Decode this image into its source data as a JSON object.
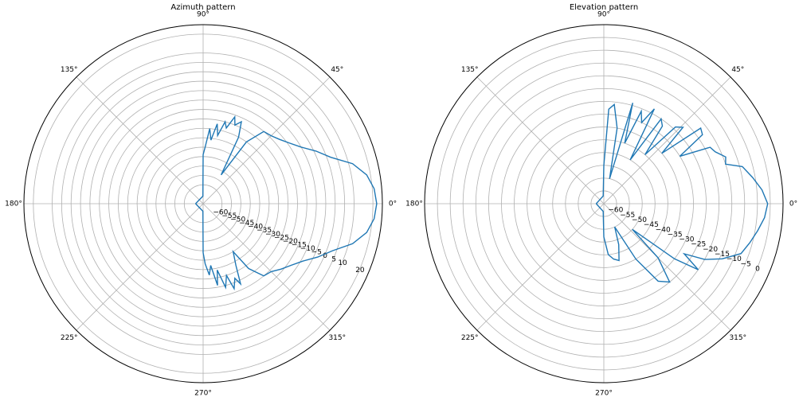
{
  "chart_data": [
    {
      "type": "polar",
      "title": "Azimuth pattern",
      "color": "#1f77b4",
      "grid": true,
      "rlim": [
        -70,
        25
      ],
      "rticks": [
        {
          "value": -60,
          "label": "−60"
        },
        {
          "value": -55,
          "label": "−55"
        },
        {
          "value": -50,
          "label": "−50"
        },
        {
          "value": -45,
          "label": "−45"
        },
        {
          "value": -40,
          "label": "−40"
        },
        {
          "value": -35,
          "label": "−35"
        },
        {
          "value": -30,
          "label": "−30"
        },
        {
          "value": -25,
          "label": "−25"
        },
        {
          "value": -20,
          "label": "−20"
        },
        {
          "value": -15,
          "label": "−15"
        },
        {
          "value": -10,
          "label": "−10"
        },
        {
          "value": -5,
          "label": "−5"
        },
        0,
        5,
        10,
        20
      ],
      "thetaticks": [
        {
          "value": 0,
          "label": "0°"
        },
        {
          "value": 45,
          "label": "45°"
        },
        {
          "value": 90,
          "label": "90°"
        },
        {
          "value": 135,
          "label": "135°"
        },
        {
          "value": 180,
          "label": "180°"
        },
        {
          "value": 225,
          "label": "225°"
        },
        {
          "value": 270,
          "label": "270°"
        },
        {
          "value": 315,
          "label": "315°"
        }
      ],
      "theta": [
        -180,
        -92,
        -90,
        -88,
        -85,
        -83,
        -80,
        -78,
        -75,
        -72,
        -70,
        -67,
        -65,
        -62,
        -58,
        -55,
        -50,
        -45,
        -40,
        -35,
        -30,
        -25,
        -20,
        -15,
        -10,
        -5,
        0,
        5,
        10,
        15,
        20,
        25,
        30,
        35,
        40,
        45,
        50,
        55,
        58,
        62,
        65,
        68,
        70,
        73,
        75,
        78,
        80,
        83,
        85,
        88,
        90,
        92,
        180
      ],
      "values": [
        -66,
        -66,
        -44,
        -38,
        -32,
        -37,
        -26,
        -34,
        -24,
        -30,
        -22,
        -27,
        -23,
        -33,
        -40,
        -28,
        -20,
        -19,
        -16,
        -13,
        -9,
        -3,
        3,
        12,
        18,
        21,
        22,
        21,
        18,
        12,
        2,
        -4,
        -10,
        -14,
        -17,
        -19,
        -20,
        -30,
        -52,
        -30,
        -22,
        -25,
        -21,
        -28,
        -25,
        -33,
        -27,
        -36,
        -30,
        -40,
        -44,
        -66,
        -66
      ]
    },
    {
      "type": "polar",
      "title": "Elevation pattern",
      "color": "#1f77b4",
      "grid": true,
      "rlim": [
        -65,
        5
      ],
      "rticks": [
        {
          "value": -60,
          "label": "−60"
        },
        {
          "value": -55,
          "label": "−55"
        },
        {
          "value": -50,
          "label": "−50"
        },
        {
          "value": -45,
          "label": "−45"
        },
        {
          "value": -40,
          "label": "−40"
        },
        {
          "value": -35,
          "label": "−35"
        },
        {
          "value": -30,
          "label": "−30"
        },
        {
          "value": -25,
          "label": "−25"
        },
        {
          "value": -20,
          "label": "−20"
        },
        {
          "value": -15,
          "label": "−15"
        },
        {
          "value": -10,
          "label": "−10"
        },
        {
          "value": -5,
          "label": "−5"
        },
        0
      ],
      "thetaticks": [
        {
          "value": 0,
          "label": "0°"
        },
        {
          "value": 45,
          "label": "45°"
        },
        {
          "value": 90,
          "label": "90°"
        },
        {
          "value": 135,
          "label": "135°"
        },
        {
          "value": 180,
          "label": "180°"
        },
        {
          "value": 225,
          "label": "225°"
        },
        {
          "value": 270,
          "label": "270°"
        },
        {
          "value": 315,
          "label": "315°"
        }
      ],
      "theta": [
        -180,
        -95,
        -90,
        -85,
        -80,
        -75,
        -70,
        -65,
        -60,
        -55,
        -50,
        -45,
        -42,
        -38,
        -35,
        -32,
        -29,
        -25,
        -20,
        -15,
        -10,
        -5,
        0,
        5,
        10,
        15,
        18,
        21,
        25,
        28,
        32,
        35,
        38,
        41,
        44,
        47,
        50,
        53,
        56,
        59,
        62,
        65,
        68,
        71,
        74,
        77,
        80,
        84,
        87,
        90,
        95,
        180
      ],
      "values": [
        -62,
        -62,
        -52,
        -45,
        -43,
        -42,
        -48,
        -55,
        -40,
        -28,
        -25,
        -35,
        -50,
        -30,
        -20,
        -28,
        -20,
        -14,
        -8,
        -6,
        -4,
        -2,
        -1,
        -3,
        -6,
        -9,
        -15,
        -14,
        -17,
        -18,
        -30,
        -18,
        -17,
        -35,
        -22,
        -24,
        -40,
        -27,
        -25,
        -45,
        -23,
        -30,
        -26,
        -40,
        -24,
        -55,
        -35,
        -26,
        -28,
        -50,
        -62,
        -62
      ]
    }
  ]
}
